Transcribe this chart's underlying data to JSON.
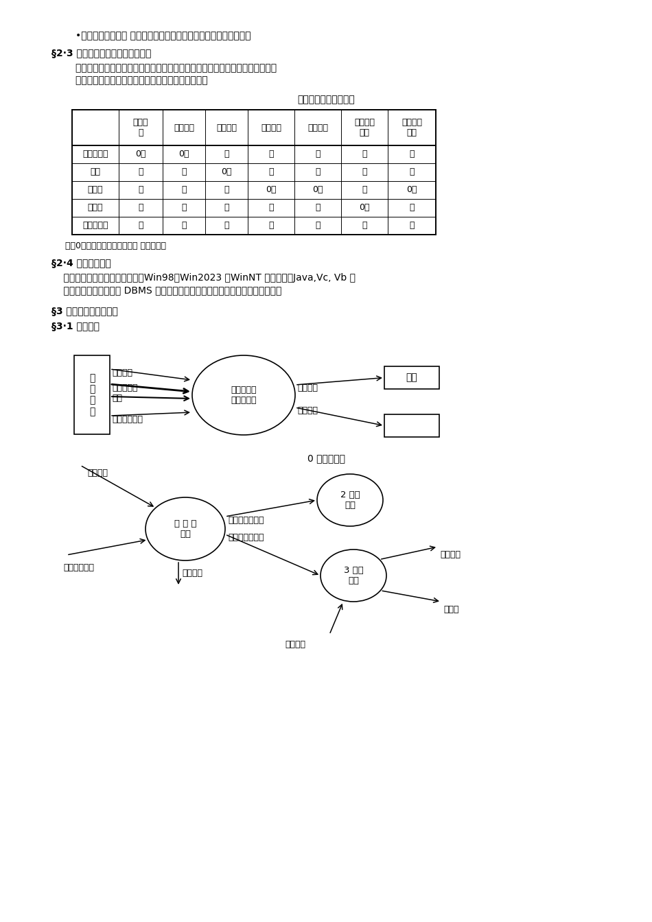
{
  "bg_color": "#ffffff",
  "text_color": "#000000",
  "bullet_text": "•毕业生学籍处理： 结业处理，毕业处理，授位处理，学籍卡片等。",
  "section23_heading": "§2·3 信息采集与各部门的使用权限",
  "section23_body1": "        每学期考试完毕由各系录入成绩，然后由教务科收集。为了信息的安全和数据的",
  "section23_body2": "        权威性，对于网上信息的使用权限和责任规定如下：",
  "table_title": "数据收集前的系统权限",
  "table_col_headers": [
    "学生档\n案",
    "学生奖惩",
    "学生成绩",
    "学籍处理",
    "补考成绩",
    "教学打算\n治理",
    "各种等级\n考试"
  ],
  "table_row_headers": [
    "学生工作处",
    "各系",
    "教务科",
    "师资科",
    "院长办公室"
  ],
  "table_data": [
    [
      "0？",
      "0？",
      "？",
      "？",
      "？",
      "？",
      "？"
    ],
    [
      "？",
      "？",
      "0？",
      "？",
      "？",
      "？",
      "？"
    ],
    [
      "？",
      "？",
      "？",
      "0？",
      "0？",
      "？",
      "0？"
    ],
    [
      "？",
      "？",
      "？",
      "？",
      "？",
      "0？",
      "？"
    ],
    [
      "？",
      "？",
      "？",
      "？",
      "？",
      "？",
      "？"
    ]
  ],
  "table_note": "注：0、登录，修改，处理权。 ？、查询权",
  "section24_heading": "§2·4 用户平台要求",
  "section24_body1": "    系统主要使用于高校的局域网，Win98、Win2023 、WinNT 等环境下，Java,Vc, Vb 连",
  "section24_body2": "    接数据库，本系统需要 DBMS 放学生学籍数据库。可进展查询，修改，处理等。",
  "section3_heading": "§3 业务规律和数据流图",
  "section31_heading": "§3·1 数据流图",
  "dfd0_caption": "0 层数据流图",
  "dfd0_left_box_label": "治\n理\n人\n员",
  "dfd0_circle_label": "学生学籍管\n理信息系统",
  "dfd0_right_box1_label": "输入",
  "dfd0_arrow1_label": "查询要求",
  "dfd0_arrow2_label": "治理要求统\n计表",
  "dfd0_arrow3_label": "学生状况学生",
  "dfd0_arrow4_label": "当前输入",
  "dfd0_arrow5_label": "学生信息",
  "dfd1_circle1_label": "检 查 有\n效性",
  "dfd1_circle2_label": "2 处理\n要求",
  "dfd1_circle3_label": "3 处理\n查询",
  "dfd1_arrow_cx_req": "查询要求",
  "dfd1_arrow_xj_req": "学籍治理要求",
  "dfd1_arrow_valid_zh": "有效的治理要求",
  "dfd1_arrow_valid_cx": "有效的查询要求",
  "dfd1_arrow_invalid": "无效输入",
  "dfd1_arrow_current": "当前输入",
  "dfd1_arrow_student": "学生状况",
  "dfd1_arrow_stat": "统计表"
}
